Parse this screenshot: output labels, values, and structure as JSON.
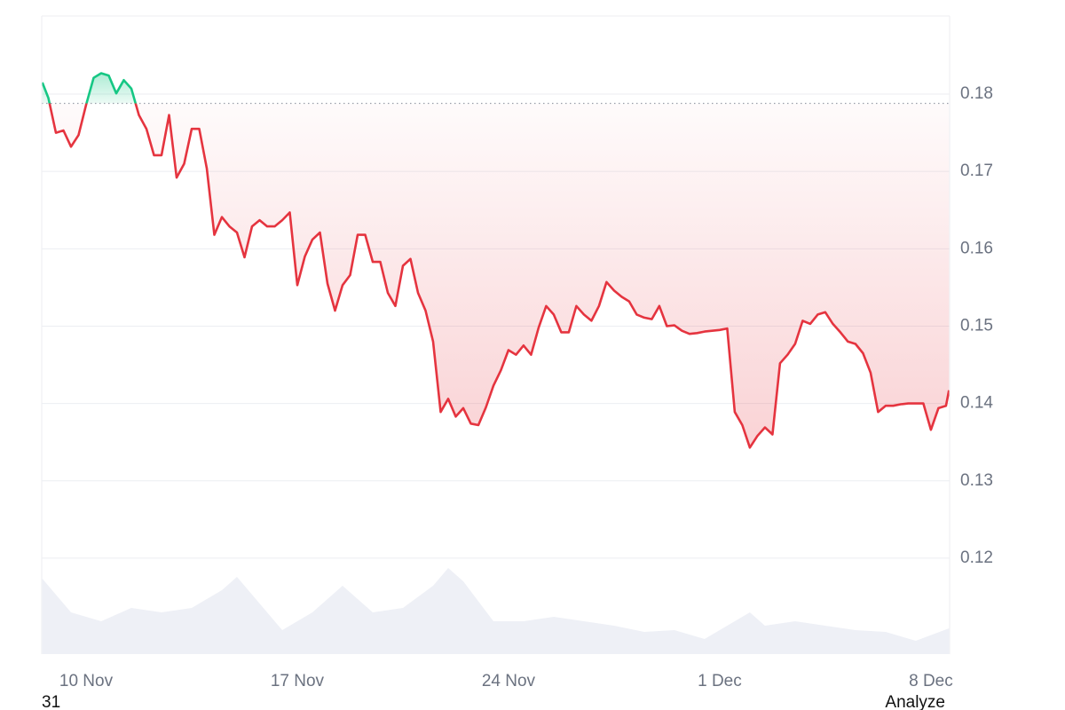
{
  "chart_data": {
    "type": "line",
    "color": "#e5343f",
    "color_above": "#16c784",
    "baseline": 0.1788,
    "grid": true,
    "xlim": [
      8.53,
      38.62
    ],
    "ylim": [
      0.1076,
      0.1901
    ],
    "xticks": [
      {
        "value": 10,
        "label": "10 Nov"
      },
      {
        "value": 17,
        "label": "17 Nov"
      },
      {
        "value": 24,
        "label": "24 Nov"
      },
      {
        "value": 31,
        "label": "1 Dec"
      },
      {
        "value": 38,
        "label": "8 Dec"
      }
    ],
    "yticks": [
      0.12,
      0.13,
      0.14,
      0.15,
      0.16,
      0.17,
      0.18
    ],
    "x": [
      8.55,
      8.75,
      9.0,
      9.25,
      9.5,
      9.75,
      10.0,
      10.25,
      10.5,
      10.75,
      11.0,
      11.25,
      11.5,
      11.75,
      12.0,
      12.25,
      12.5,
      12.75,
      13.0,
      13.25,
      13.5,
      13.75,
      14.0,
      14.25,
      14.5,
      14.75,
      15.0,
      15.25,
      15.5,
      15.75,
      16.0,
      16.25,
      16.5,
      16.75,
      17.0,
      17.25,
      17.5,
      17.75,
      18.0,
      18.25,
      18.5,
      18.75,
      19.0,
      19.25,
      19.5,
      19.75,
      20.0,
      20.25,
      20.5,
      20.75,
      21.0,
      21.25,
      21.5,
      21.75,
      22.0,
      22.25,
      22.5,
      22.75,
      23.0,
      23.25,
      23.5,
      23.75,
      24.0,
      24.25,
      24.5,
      24.75,
      25.0,
      25.25,
      25.5,
      25.75,
      26.0,
      26.25,
      26.5,
      26.75,
      27.0,
      27.25,
      27.5,
      27.75,
      28.0,
      28.25,
      28.5,
      28.75,
      29.0,
      29.25,
      29.5,
      29.75,
      30.0,
      30.25,
      30.5,
      30.75,
      31.0,
      31.25,
      31.5,
      31.75,
      32.0,
      32.25,
      32.5,
      32.75,
      33.0,
      33.25,
      33.5,
      33.75,
      34.0,
      34.25,
      34.5,
      34.75,
      35.0,
      35.25,
      35.5,
      35.75,
      36.0,
      36.25,
      36.5,
      36.75,
      37.0,
      37.25,
      37.5,
      37.75,
      38.0,
      38.25,
      38.5,
      38.6
    ],
    "values": [
      0.1815,
      0.1795,
      0.175,
      0.1753,
      0.1732,
      0.1747,
      0.1786,
      0.1821,
      0.1827,
      0.1824,
      0.1801,
      0.1818,
      0.1807,
      0.1773,
      0.1755,
      0.1721,
      0.1721,
      0.1773,
      0.1692,
      0.171,
      0.1755,
      0.1755,
      0.1704,
      0.1618,
      0.1641,
      0.1629,
      0.1621,
      0.1589,
      0.1629,
      0.1637,
      0.1629,
      0.1629,
      0.1637,
      0.1647,
      0.1553,
      0.159,
      0.1612,
      0.1621,
      0.1555,
      0.152,
      0.1553,
      0.1566,
      0.1618,
      0.1618,
      0.1583,
      0.1583,
      0.1543,
      0.1526,
      0.1578,
      0.1587,
      0.1543,
      0.152,
      0.148,
      0.1389,
      0.1406,
      0.1383,
      0.1394,
      0.1374,
      0.1372,
      0.1395,
      0.1423,
      0.1443,
      0.1469,
      0.1463,
      0.1475,
      0.1463,
      0.1498,
      0.1526,
      0.1515,
      0.1492,
      0.1492,
      0.1526,
      0.1515,
      0.1507,
      0.1526,
      0.1557,
      0.1546,
      0.1538,
      0.1532,
      0.1515,
      0.1511,
      0.1509,
      0.1526,
      0.15,
      0.1501,
      0.1494,
      0.149,
      0.1491,
      0.1493,
      0.1494,
      0.1495,
      0.1497,
      0.1389,
      0.1372,
      0.1343,
      0.1358,
      0.1369,
      0.136,
      0.1452,
      0.1463,
      0.1477,
      0.1507,
      0.1503,
      0.1515,
      0.1518,
      0.1503,
      0.1492,
      0.148,
      0.1477,
      0.1465,
      0.144,
      0.1389,
      0.1397,
      0.1397,
      0.1399,
      0.14,
      0.14,
      0.14,
      0.1366,
      0.1394,
      0.1397,
      0.1417
    ],
    "volume": {
      "color": "#eef0f6",
      "ylim": [
        0,
        100
      ],
      "x": [
        8.55,
        9.5,
        10.5,
        11.5,
        12.5,
        13.5,
        14.5,
        15.0,
        15.5,
        16.5,
        17.5,
        18.5,
        19.5,
        20.5,
        21.5,
        22.0,
        22.5,
        23.5,
        24.5,
        25.5,
        26.5,
        27.5,
        28.5,
        29.5,
        30.5,
        31.5,
        32.0,
        32.5,
        33.5,
        34.5,
        35.5,
        36.5,
        37.5,
        38.6
      ],
      "values": [
        85,
        47,
        37,
        52,
        47,
        52,
        72,
        87,
        67,
        27,
        47,
        77,
        47,
        52,
        77,
        97,
        82,
        37,
        37,
        42,
        37,
        32,
        25,
        27,
        17,
        37,
        47,
        32,
        37,
        32,
        27,
        25,
        15,
        29
      ]
    },
    "footer_left": "31",
    "footer_right": "Analyze"
  }
}
